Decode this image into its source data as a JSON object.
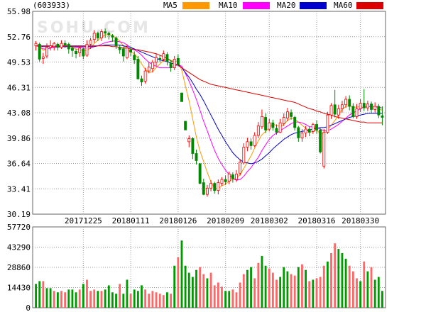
{
  "header": {
    "code": "(603933)",
    "watermark": "SOHU.COM"
  },
  "legend": [
    {
      "name": "MA5",
      "color": "#ff9900"
    },
    {
      "name": "MA10",
      "color": "#ff00ff"
    },
    {
      "name": "MA20",
      "color": "#0000cc"
    },
    {
      "name": "MA60",
      "color": "#dd0000"
    }
  ],
  "colors": {
    "up": "#ff0000",
    "down": "#008800",
    "vol_up": "#ff6666",
    "vol_down": "#009900",
    "grid": "#999999"
  },
  "chart_data": [
    {
      "type": "candlestick",
      "title": "(603933)",
      "ylim": [
        30.19,
        55.98
      ],
      "y_ticks": [
        "55.98",
        "52.76",
        "49.53",
        "46.31",
        "43.08",
        "39.86",
        "36.64",
        "33.41",
        "30.19"
      ],
      "x_tick_labels": [
        {
          "label": "20171225",
          "index": 13
        },
        {
          "label": "20180111",
          "index": 26
        },
        {
          "label": "20180126",
          "index": 39
        },
        {
          "label": "20180209",
          "index": 52
        },
        {
          "label": "20180302",
          "index": 64
        },
        {
          "label": "20180316",
          "index": 77
        },
        {
          "label": "20180330",
          "index": 89
        }
      ],
      "candles": [
        [
          51.6,
          51.9,
          51.0,
          52.2
        ],
        [
          51.8,
          49.9,
          49.6,
          52.0
        ],
        [
          50.0,
          50.2,
          49.3,
          50.7
        ],
        [
          50.3,
          51.4,
          50.0,
          51.9
        ],
        [
          51.4,
          51.6,
          51.0,
          52.3
        ],
        [
          51.5,
          51.9,
          51.0,
          52.1
        ],
        [
          51.8,
          51.4,
          51.0,
          52.0
        ],
        [
          51.4,
          51.9,
          51.2,
          52.3
        ],
        [
          51.9,
          51.7,
          51.3,
          52.3
        ],
        [
          51.8,
          51.2,
          50.6,
          52.0
        ],
        [
          51.3,
          51.0,
          50.2,
          51.6
        ],
        [
          50.9,
          50.6,
          50.0,
          51.2
        ],
        [
          50.7,
          51.3,
          50.2,
          51.5
        ],
        [
          51.2,
          50.3,
          49.9,
          51.4
        ],
        [
          50.4,
          51.8,
          50.2,
          52.3
        ],
        [
          51.8,
          52.3,
          51.2,
          52.6
        ],
        [
          52.4,
          53.2,
          52.0,
          53.6
        ],
        [
          53.2,
          52.6,
          52.2,
          53.4
        ],
        [
          52.6,
          53.4,
          52.2,
          53.7
        ],
        [
          53.4,
          53.2,
          52.6,
          53.8
        ],
        [
          53.2,
          53.0,
          52.4,
          53.4
        ],
        [
          52.9,
          52.7,
          52.1,
          53.1
        ],
        [
          52.6,
          51.6,
          51.2,
          52.8
        ],
        [
          51.4,
          51.1,
          50.6,
          51.7
        ],
        [
          51.2,
          50.3,
          49.6,
          51.5
        ],
        [
          50.1,
          51.3,
          49.9,
          51.8
        ],
        [
          51.1,
          50.8,
          50.3,
          51.5
        ],
        [
          50.4,
          49.8,
          49.3,
          50.9
        ],
        [
          49.9,
          47.4,
          47.3,
          50.3
        ],
        [
          47.4,
          47.0,
          46.5,
          47.8
        ],
        [
          47.1,
          48.4,
          46.8,
          48.8
        ],
        [
          48.4,
          48.9,
          48.1,
          49.5
        ],
        [
          48.7,
          49.5,
          48.2,
          49.8
        ],
        [
          49.5,
          50.1,
          49.0,
          50.6
        ],
        [
          50.0,
          49.9,
          49.5,
          50.4
        ],
        [
          49.9,
          50.6,
          49.6,
          51.0
        ],
        [
          50.5,
          49.6,
          49.1,
          50.8
        ],
        [
          49.4,
          48.8,
          48.3,
          49.8
        ],
        [
          48.8,
          49.9,
          48.5,
          50.3
        ],
        [
          50.0,
          49.2,
          49.0,
          50.5
        ],
        [
          45.6,
          44.5,
          44.5,
          45.6
        ],
        [
          42.0,
          40.9,
          40.9,
          42.0
        ],
        [
          39.4,
          39.8,
          38.7,
          40.2
        ],
        [
          39.8,
          37.9,
          37.2,
          40.0
        ],
        [
          37.9,
          37.0,
          36.5,
          38.4
        ],
        [
          36.6,
          34.1,
          34.0,
          36.7
        ],
        [
          34.2,
          32.7,
          32.6,
          34.7
        ],
        [
          32.7,
          33.5,
          32.4,
          33.9
        ],
        [
          33.5,
          34.1,
          33.1,
          34.5
        ],
        [
          34.1,
          33.2,
          32.8,
          34.3
        ],
        [
          33.2,
          34.2,
          32.7,
          34.6
        ],
        [
          34.1,
          34.6,
          33.8,
          34.9
        ],
        [
          34.6,
          34.3,
          33.9,
          35.1
        ],
        [
          34.4,
          35.3,
          34.0,
          35.6
        ],
        [
          35.2,
          34.7,
          34.2,
          35.5
        ],
        [
          34.6,
          35.3,
          34.3,
          35.8
        ],
        [
          35.4,
          36.8,
          35.1,
          37.2
        ],
        [
          36.7,
          38.7,
          36.5,
          39.2
        ],
        [
          38.7,
          39.4,
          38.2,
          39.9
        ],
        [
          39.4,
          38.9,
          38.4,
          39.8
        ],
        [
          38.9,
          40.2,
          38.7,
          40.6
        ],
        [
          40.2,
          41.4,
          39.9,
          41.9
        ],
        [
          41.3,
          42.6,
          41.0,
          43.5
        ],
        [
          42.5,
          40.9,
          40.5,
          43.0
        ],
        [
          41.0,
          41.8,
          40.7,
          42.3
        ],
        [
          41.8,
          41.2,
          40.8,
          42.2
        ],
        [
          41.1,
          40.6,
          40.3,
          41.6
        ],
        [
          40.6,
          41.8,
          40.5,
          42.3
        ],
        [
          41.7,
          42.5,
          41.4,
          43.0
        ],
        [
          42.4,
          43.2,
          42.0,
          43.7
        ],
        [
          43.1,
          42.6,
          42.2,
          43.5
        ],
        [
          42.5,
          41.2,
          40.8,
          42.7
        ],
        [
          41.2,
          39.9,
          39.4,
          41.4
        ],
        [
          39.9,
          40.5,
          39.4,
          41.0
        ],
        [
          40.5,
          41.0,
          40.0,
          41.4
        ],
        [
          41.0,
          40.6,
          40.1,
          41.3
        ],
        [
          40.7,
          41.6,
          40.4,
          41.8
        ],
        [
          41.6,
          40.9,
          40.4,
          42.1
        ],
        [
          40.9,
          38.1,
          37.9,
          41.1
        ],
        [
          36.3,
          40.6,
          36.0,
          41.0
        ],
        [
          40.6,
          42.8,
          40.4,
          43.2
        ],
        [
          42.8,
          44.0,
          42.3,
          44.3
        ],
        [
          44.1,
          42.9,
          42.5,
          46.0
        ],
        [
          42.8,
          43.6,
          42.3,
          44.1
        ],
        [
          43.6,
          44.1,
          43.1,
          44.6
        ],
        [
          44.1,
          44.8,
          43.7,
          45.2
        ],
        [
          44.8,
          43.9,
          43.4,
          45.3
        ],
        [
          43.9,
          42.6,
          42.4,
          44.3
        ],
        [
          42.6,
          43.6,
          42.3,
          44.2
        ],
        [
          43.6,
          44.3,
          43.2,
          44.8
        ],
        [
          44.3,
          43.7,
          43.3,
          46.1
        ],
        [
          43.7,
          44.2,
          43.3,
          44.6
        ],
        [
          44.2,
          43.5,
          43.1,
          44.5
        ],
        [
          43.5,
          43.9,
          43.1,
          44.4
        ],
        [
          43.9,
          42.8,
          42.4,
          44.2
        ],
        [
          42.7,
          42.5,
          41.5,
          43.9
        ]
      ],
      "moving_averages": {
        "MA5": [
          51.6,
          51.5,
          51.0,
          51.2,
          51.3,
          51.5,
          51.5,
          51.6,
          51.7,
          51.6,
          51.4,
          51.2,
          51.1,
          51.0,
          51.0,
          51.3,
          51.9,
          52.3,
          52.7,
          53.0,
          53.0,
          52.9,
          52.6,
          52.2,
          51.6,
          51.1,
          50.8,
          50.6,
          50.0,
          49.3,
          48.6,
          48.2,
          48.3,
          48.8,
          49.3,
          49.8,
          49.9,
          49.7,
          49.7,
          49.6,
          48.5,
          46.5,
          44.6,
          42.3,
          40.0,
          38.2,
          36.9,
          35.5,
          34.3,
          33.5,
          33.4,
          33.8,
          34.0,
          34.4,
          34.6,
          34.8,
          35.2,
          36.0,
          36.8,
          37.6,
          38.6,
          39.5,
          40.3,
          40.7,
          41.2,
          41.6,
          41.5,
          41.3,
          41.6,
          42.1,
          42.4,
          42.3,
          41.9,
          41.5,
          41.1,
          40.6,
          40.7,
          40.9,
          40.4,
          40.4,
          40.9,
          41.5,
          42.1,
          42.8,
          43.5,
          43.9,
          44.0,
          43.8,
          43.8,
          43.9,
          43.7,
          43.8,
          43.9,
          43.9,
          43.6,
          43.4
        ],
        "MA10": [
          51.6,
          51.5,
          51.2,
          51.2,
          51.3,
          51.4,
          51.4,
          51.5,
          51.5,
          51.5,
          51.5,
          51.4,
          51.4,
          51.3,
          51.3,
          51.3,
          51.5,
          51.6,
          51.8,
          52.0,
          52.1,
          52.2,
          52.2,
          52.1,
          52.0,
          51.7,
          51.4,
          51.1,
          50.8,
          50.4,
          49.9,
          49.5,
          49.2,
          49.0,
          48.8,
          48.8,
          48.8,
          48.8,
          49.0,
          49.2,
          49.0,
          48.1,
          47.1,
          46.0,
          44.8,
          43.4,
          42.0,
          40.8,
          39.5,
          38.3,
          37.3,
          36.5,
          35.8,
          35.2,
          34.7,
          34.5,
          34.6,
          35.0,
          35.6,
          36.1,
          36.8,
          37.4,
          38.3,
          39.0,
          39.7,
          40.2,
          40.5,
          40.8,
          41.1,
          41.4,
          41.7,
          41.9,
          41.9,
          41.8,
          41.6,
          41.3,
          41.3,
          41.2,
          41.0,
          40.8,
          40.8,
          41.0,
          41.3,
          41.6,
          42.0,
          42.4,
          42.8,
          43.1,
          43.3,
          43.6,
          43.8,
          43.9,
          43.9,
          43.9,
          43.8,
          43.7
        ],
        "MA20": [
          51.6,
          51.6,
          51.5,
          51.5,
          51.5,
          51.5,
          51.5,
          51.5,
          51.5,
          51.5,
          51.5,
          51.5,
          51.5,
          51.5,
          51.5,
          51.5,
          51.5,
          51.6,
          51.6,
          51.7,
          51.7,
          51.7,
          51.7,
          51.7,
          51.6,
          51.5,
          51.4,
          51.2,
          51.0,
          50.8,
          50.6,
          50.4,
          50.2,
          50.0,
          49.8,
          49.7,
          49.6,
          49.4,
          49.3,
          49.2,
          48.8,
          48.2,
          47.6,
          46.9,
          46.1,
          45.4,
          44.6,
          43.7,
          42.8,
          41.9,
          41.0,
          40.2,
          39.4,
          38.7,
          38.0,
          37.5,
          37.1,
          36.8,
          36.7,
          36.6,
          36.7,
          36.9,
          37.2,
          37.6,
          38.0,
          38.5,
          38.9,
          39.3,
          39.7,
          40.0,
          40.3,
          40.5,
          40.6,
          40.7,
          40.8,
          40.9,
          41.0,
          41.1,
          41.2,
          41.2,
          41.3,
          41.5,
          41.7,
          41.9,
          42.1,
          42.3,
          42.5,
          42.6,
          42.7,
          42.8,
          42.9,
          43.0,
          43.0,
          43.0,
          43.0,
          43.0
        ],
        "MA60": [
          51.6,
          51.6,
          51.6,
          51.6,
          51.6,
          51.6,
          51.6,
          51.6,
          51.6,
          51.6,
          51.6,
          51.6,
          51.6,
          51.6,
          51.6,
          51.6,
          51.6,
          51.6,
          51.6,
          51.6,
          51.6,
          51.5,
          51.5,
          51.4,
          51.3,
          51.3,
          51.2,
          51.1,
          51.1,
          51.0,
          50.9,
          50.8,
          50.7,
          50.6,
          50.4,
          50.2,
          50.0,
          49.7,
          49.4,
          49.1,
          48.8,
          48.5,
          48.2,
          47.9,
          47.6,
          47.3,
          47.1,
          46.9,
          46.7,
          46.6,
          46.5,
          46.4,
          46.3,
          46.2,
          46.1,
          46.0,
          45.9,
          45.8,
          45.7,
          45.6,
          45.5,
          45.4,
          45.3,
          45.2,
          45.1,
          45.0,
          44.9,
          44.8,
          44.7,
          44.6,
          44.5,
          44.4,
          44.2,
          44.0,
          43.8,
          43.6,
          43.5,
          43.3,
          43.2,
          43.0,
          42.9,
          42.8,
          42.6,
          42.5,
          42.4,
          42.3,
          42.2,
          42.1,
          42.0,
          41.9,
          41.9,
          41.8,
          41.8,
          41.8,
          41.8,
          41.8
        ]
      }
    },
    {
      "type": "bar",
      "title": "",
      "ylim": [
        0,
        57720
      ],
      "y_ticks": [
        "57720",
        "43290",
        "28860",
        "14430",
        "0"
      ],
      "values": [
        17000,
        19000,
        19000,
        14000,
        14000,
        12000,
        11000,
        12000,
        11000,
        13000,
        13000,
        11000,
        13000,
        17000,
        20000,
        12000,
        13000,
        12000,
        12000,
        13000,
        16000,
        11000,
        10000,
        17000,
        10000,
        20000,
        10000,
        13000,
        12000,
        16000,
        13000,
        10000,
        12000,
        11000,
        10000,
        9000,
        11000,
        10000,
        30000,
        36000,
        48000,
        30000,
        25000,
        22000,
        27000,
        29000,
        24000,
        21000,
        25000,
        16000,
        18000,
        15000,
        12000,
        12000,
        13000,
        11000,
        18000,
        24000,
        27000,
        29000,
        21000,
        32000,
        37000,
        30000,
        28000,
        25000,
        20000,
        22000,
        29000,
        26000,
        24000,
        23000,
        29000,
        31000,
        27000,
        19000,
        20000,
        21000,
        22000,
        30000,
        33000,
        39000,
        46000,
        42000,
        39000,
        35000,
        30000,
        26000,
        21000,
        19000,
        33000,
        26000,
        29000,
        20000,
        22000,
        12000
      ],
      "directions": "ddudduduuddduduuududdddudduddduuuuuudududdddduuduuuudduuuudduudduuuddduudududuuuduuddduuudududdd"
    }
  ]
}
